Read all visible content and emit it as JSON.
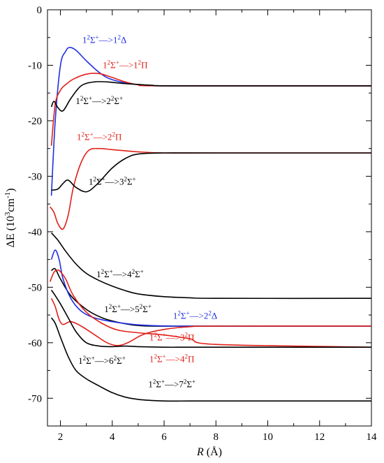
{
  "chart_data": {
    "type": "line",
    "xlabel": "R (Å)",
    "xlabel_parts": {
      "var": "R",
      "unit": " (Å)"
    },
    "ylabel": "ΔE (10³cm⁻¹)",
    "ylabel_parts": {
      "main": "ΔE (10",
      "exp1": "3",
      "mid": "cm",
      "exp2": "-1",
      "close": ")"
    },
    "xlim": [
      1.5,
      14
    ],
    "ylim": [
      -75,
      0
    ],
    "xticks": [
      2,
      4,
      6,
      8,
      10,
      12,
      14
    ],
    "xtick_labels": [
      "2",
      "4",
      "6",
      "8",
      "10",
      "12",
      "14"
    ],
    "yticks": [
      0,
      -10,
      -20,
      -30,
      -40,
      -50,
      -60,
      -70
    ],
    "ytick_labels": [
      "0",
      "-10",
      "-20",
      "-30",
      "-40",
      "-50",
      "-60",
      "-70"
    ],
    "grid": false,
    "colors": {
      "black": "#000000",
      "red": "#e0201a",
      "blue": "#1f2fe0"
    },
    "series": [
      {
        "name": "1²Σ⁺—>1²Δ",
        "color": "#1f2fe0",
        "x": [
          1.65,
          1.8,
          2.0,
          2.2,
          2.35,
          2.6,
          3.0,
          3.5,
          4.0,
          5.0,
          6.0,
          8.0,
          10.0,
          14.0
        ],
        "y": [
          -33.5,
          -20.0,
          -10.0,
          -7.5,
          -6.8,
          -7.3,
          -9.2,
          -11.3,
          -12.6,
          -13.5,
          -13.7,
          -13.7,
          -13.7,
          -13.7
        ]
      },
      {
        "name": "1²Σ⁺—>1²Π",
        "color": "#e0201a",
        "x": [
          1.65,
          1.8,
          2.0,
          2.2,
          2.5,
          3.0,
          3.5,
          4.0,
          4.5,
          5.0,
          6.0,
          14.0
        ],
        "y": [
          -24.5,
          -17.0,
          -14.5,
          -13.5,
          -12.5,
          -11.6,
          -11.5,
          -12.2,
          -13.0,
          -13.5,
          -13.7,
          -13.7
        ]
      },
      {
        "name": "1²Σ⁺—>2²Σ⁺",
        "color": "#000000",
        "x": [
          1.65,
          1.75,
          1.9,
          2.1,
          2.4,
          2.8,
          3.3,
          3.8,
          4.5,
          5.5,
          6.5,
          14.0
        ],
        "y": [
          -17.5,
          -16.5,
          -17.6,
          -18.2,
          -16.0,
          -13.7,
          -13.0,
          -13.0,
          -13.3,
          -13.6,
          -13.7,
          -13.7
        ]
      },
      {
        "name": "1²Σ⁺—>2²Π",
        "color": "#e0201a",
        "x": [
          1.6,
          1.75,
          1.9,
          2.1,
          2.3,
          2.5,
          2.8,
          3.1,
          3.5,
          4.0,
          5.0,
          6.0,
          8.0,
          14.0
        ],
        "y": [
          -35.5,
          -36.5,
          -38.5,
          -39.5,
          -37.0,
          -32.0,
          -27.5,
          -25.3,
          -25.0,
          -25.2,
          -25.6,
          -25.8,
          -25.8,
          -25.8
        ]
      },
      {
        "name": "1²Σ⁺—>3²Σ⁺",
        "color": "#000000",
        "x": [
          1.65,
          1.9,
          2.1,
          2.3,
          2.6,
          3.0,
          3.4,
          4.0,
          4.5,
          5.0,
          6.0,
          8.0,
          14.0
        ],
        "y": [
          -32.5,
          -32.3,
          -31.3,
          -30.7,
          -32.0,
          -32.8,
          -31.5,
          -28.5,
          -26.8,
          -26.0,
          -25.8,
          -25.8,
          -25.8
        ]
      },
      {
        "name": "1²Σ⁺—>4²Σ⁺",
        "color": "#000000",
        "x": [
          1.65,
          1.9,
          2.2,
          2.6,
          3.0,
          3.5,
          4.0,
          4.5,
          5.0,
          6.0,
          7.0,
          8.0,
          14.0
        ],
        "y": [
          -40.2,
          -41.5,
          -43.5,
          -45.8,
          -47.5,
          -48.8,
          -49.8,
          -50.6,
          -51.2,
          -51.7,
          -51.9,
          -52.0,
          -52.0
        ]
      },
      {
        "name": "1²Σ⁺—>5²Σ⁺",
        "color": "#000000",
        "x": [
          1.65,
          1.8,
          2.0,
          2.4,
          3.0,
          3.6,
          4.2,
          4.8,
          5.5,
          6.5,
          8.0,
          14.0
        ],
        "y": [
          -47.0,
          -46.7,
          -48.5,
          -51.5,
          -54.0,
          -55.5,
          -56.3,
          -56.8,
          -57.0,
          -57.0,
          -57.0,
          -57.0
        ]
      },
      {
        "name": "1²Σ⁺—>2²Δ",
        "color": "#1f2fe0",
        "x": [
          1.65,
          1.8,
          1.95,
          2.1,
          2.4,
          2.8,
          3.3,
          4.0,
          4.8,
          5.5,
          6.5,
          8.0,
          14.0
        ],
        "y": [
          -45.0,
          -43.3,
          -45.0,
          -48.5,
          -52.0,
          -54.3,
          -55.5,
          -56.2,
          -56.7,
          -56.9,
          -57.0,
          -57.0,
          -57.0
        ]
      },
      {
        "name": "1²Σ⁺—>3²Π",
        "color": "#e0201a",
        "x": [
          1.65,
          1.8,
          1.95,
          2.1,
          2.4,
          2.8,
          3.3,
          3.8,
          4.2,
          4.6,
          5.2,
          6.0,
          7.0,
          8.0,
          14.0
        ],
        "y": [
          -52.0,
          -53.5,
          -55.8,
          -56.7,
          -56.2,
          -57.0,
          -58.5,
          -60.0,
          -60.5,
          -60.0,
          -58.5,
          -57.6,
          -57.1,
          -57.0,
          -57.0
        ]
      },
      {
        "name": "1²Σ⁺—>4²Π",
        "color": "#e0201a",
        "x": [
          1.6,
          1.75,
          1.9,
          2.0,
          2.2,
          2.5,
          3.0,
          3.6,
          4.2,
          5.0,
          6.0,
          7.0,
          8.0,
          14.0
        ],
        "y": [
          -49.0,
          -47.3,
          -46.9,
          -47.2,
          -48.5,
          -51.5,
          -54.5,
          -56.5,
          -57.7,
          -58.2,
          -58.6,
          -59.3,
          -60.3,
          -60.8
        ]
      },
      {
        "name": "1²Σ⁺—>6²Σ⁺",
        "color": "#000000",
        "x": [
          1.65,
          1.8,
          2.0,
          2.3,
          2.6,
          3.0,
          3.5,
          4.0,
          4.5,
          5.0,
          6.0,
          7.0,
          8.0,
          14.0
        ],
        "y": [
          -50.5,
          -51.5,
          -53.0,
          -55.5,
          -58.0,
          -60.0,
          -60.6,
          -60.7,
          -60.6,
          -60.7,
          -60.8,
          -60.8,
          -60.8,
          -60.8
        ]
      },
      {
        "name": "1²Σ⁺—>7²Σ⁺",
        "color": "#000000",
        "x": [
          1.65,
          1.8,
          2.0,
          2.3,
          2.6,
          3.0,
          3.5,
          4.0,
          4.5,
          5.0,
          5.5,
          6.0,
          7.0,
          8.0,
          14.0
        ],
        "y": [
          -55.5,
          -56.5,
          -59.0,
          -62.5,
          -65.0,
          -66.5,
          -67.8,
          -69.0,
          -69.8,
          -70.2,
          -70.4,
          -70.5,
          -70.5,
          -70.5,
          -70.5
        ]
      }
    ],
    "annotations": [
      {
        "series": 0,
        "pre": "1",
        "a": "2",
        "mid": "Σ",
        "b": "+",
        "arrow": "—>1",
        "c": "2",
        "end": "Δ",
        "color": "#1f2fe0",
        "at_x": 3.7,
        "at_y": -6.0
      },
      {
        "series": 1,
        "pre": "1",
        "a": "2",
        "mid": "Σ",
        "b": "+",
        "arrow": "—>1",
        "c": "2",
        "end": "Π",
        "color": "#e0201a",
        "at_x": 4.5,
        "at_y": -10.5
      },
      {
        "series": 2,
        "pre": "1",
        "a": "2",
        "mid": "Σ",
        "b": "+",
        "arrow": "—>2",
        "c": "2",
        "end": "Σ",
        "d": "+",
        "color": "#000000",
        "at_x": 3.5,
        "at_y": -17.0
      },
      {
        "series": 3,
        "pre": "1",
        "a": "2",
        "mid": "Σ",
        "b": "+",
        "arrow": "—>2",
        "c": "2",
        "end": "Π",
        "color": "#e0201a",
        "at_x": 3.5,
        "at_y": -23.5
      },
      {
        "series": 4,
        "pre": "1",
        "a": "2",
        "mid": "Σ",
        "b": "+",
        "arrow": "—>3",
        "c": "2",
        "end": "Σ",
        "d": "+",
        "color": "#000000",
        "at_x": 4.0,
        "at_y": -31.5
      },
      {
        "series": 5,
        "pre": "1",
        "a": "2",
        "mid": "Σ",
        "b": "+",
        "arrow": "—>4",
        "c": "2",
        "end": "Σ",
        "d": "+",
        "color": "#000000",
        "at_x": 4.3,
        "at_y": -48.2
      },
      {
        "series": 6,
        "pre": "1",
        "a": "2",
        "mid": "Σ",
        "b": "+",
        "arrow": "—>5",
        "c": "2",
        "end": "Σ",
        "d": "+",
        "color": "#000000",
        "at_x": 4.6,
        "at_y": -54.5
      },
      {
        "series": 7,
        "pre": "1",
        "a": "2",
        "mid": "Σ",
        "b": "+",
        "arrow": "—>2",
        "c": "2",
        "end": "Δ",
        "color": "#1f2fe0",
        "at_x": 7.2,
        "at_y": -55.7
      },
      {
        "series": 8,
        "pre": "1",
        "a": "2",
        "mid": "Σ",
        "b": "+",
        "arrow": "—>3",
        "c": "2",
        "end": "Π",
        "color": "#e0201a",
        "at_x": 6.3,
        "at_y": -59.6
      },
      {
        "series": 9,
        "pre": "1",
        "a": "2",
        "mid": "Σ",
        "b": "+",
        "arrow": "—>4",
        "c": "2",
        "end": "Π",
        "color": "#e0201a",
        "at_x": 6.3,
        "at_y": -63.5
      },
      {
        "series": 10,
        "pre": "1",
        "a": "2",
        "mid": "Σ",
        "b": "+",
        "arrow": "—>6",
        "c": "2",
        "end": "Σ",
        "d": "+",
        "color": "#000000",
        "at_x": 3.6,
        "at_y": -63.8
      },
      {
        "series": 11,
        "pre": "1",
        "a": "2",
        "mid": "Σ",
        "b": "+",
        "arrow": "—>7",
        "c": "2",
        "end": "Σ",
        "d": "+",
        "color": "#000000",
        "at_x": 6.3,
        "at_y": -68.0
      }
    ]
  }
}
